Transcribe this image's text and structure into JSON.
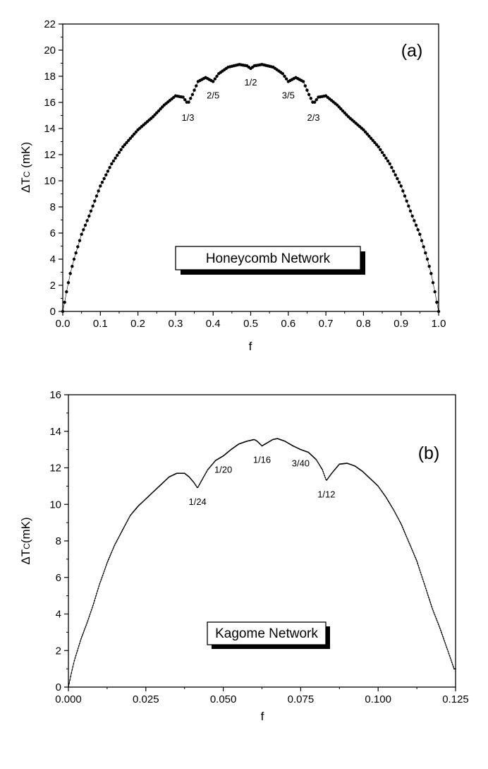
{
  "chart_data": [
    {
      "type": "scatter",
      "panel_label": "(a)",
      "xlabel": "f",
      "ylabel_main": "ΔT",
      "ylabel_sub": "C",
      "ylabel_unit": " (mK)",
      "xlim": [
        0.0,
        1.0
      ],
      "ylim": [
        0,
        22
      ],
      "x_ticks": [
        0.0,
        0.1,
        0.2,
        0.3,
        0.4,
        0.5,
        0.6,
        0.7,
        0.8,
        0.9,
        1.0
      ],
      "x_tick_labels": [
        "0.0",
        "0.1",
        "0.2",
        "0.3",
        "0.4",
        "0.5",
        "0.6",
        "0.7",
        "0.8",
        "0.9",
        "1.0"
      ],
      "y_ticks": [
        0,
        2,
        4,
        6,
        8,
        10,
        12,
        14,
        16,
        18,
        20,
        22
      ],
      "y_tick_labels": [
        "0",
        "2",
        "4",
        "6",
        "8",
        "10",
        "12",
        "14",
        "16",
        "18",
        "20",
        "22"
      ],
      "legend_text": "Honeycomb Network",
      "grid": false,
      "curve": [
        [
          0.0,
          0.0
        ],
        [
          0.005,
          0.7
        ],
        [
          0.01,
          1.5
        ],
        [
          0.02,
          2.9
        ],
        [
          0.03,
          4.0
        ],
        [
          0.05,
          5.9
        ],
        [
          0.07,
          7.3
        ],
        [
          0.1,
          9.6
        ],
        [
          0.13,
          11.3
        ],
        [
          0.16,
          12.6
        ],
        [
          0.2,
          13.9
        ],
        [
          0.24,
          14.9
        ],
        [
          0.27,
          15.8
        ],
        [
          0.3,
          16.5
        ],
        [
          0.32,
          16.4
        ],
        [
          0.333,
          15.9
        ],
        [
          0.345,
          16.6
        ],
        [
          0.36,
          17.6
        ],
        [
          0.38,
          17.9
        ],
        [
          0.4,
          17.6
        ],
        [
          0.415,
          18.2
        ],
        [
          0.44,
          18.7
        ],
        [
          0.47,
          18.9
        ],
        [
          0.49,
          18.8
        ],
        [
          0.5,
          18.6
        ],
        [
          0.51,
          18.8
        ],
        [
          0.53,
          18.9
        ],
        [
          0.56,
          18.7
        ],
        [
          0.585,
          18.2
        ],
        [
          0.6,
          17.6
        ],
        [
          0.62,
          17.9
        ],
        [
          0.64,
          17.6
        ],
        [
          0.655,
          16.6
        ],
        [
          0.667,
          15.9
        ],
        [
          0.68,
          16.4
        ],
        [
          0.7,
          16.5
        ],
        [
          0.73,
          15.8
        ],
        [
          0.76,
          14.9
        ],
        [
          0.8,
          13.9
        ],
        [
          0.84,
          12.6
        ],
        [
          0.87,
          11.3
        ],
        [
          0.9,
          9.6
        ],
        [
          0.93,
          7.3
        ],
        [
          0.95,
          5.9
        ],
        [
          0.97,
          4.0
        ],
        [
          0.98,
          2.9
        ],
        [
          0.99,
          1.5
        ],
        [
          0.995,
          0.7
        ],
        [
          1.0,
          0.0
        ]
      ],
      "annotations": [
        {
          "text": "1/3",
          "x": 0.333,
          "y": 15.9
        },
        {
          "text": "2/5",
          "x": 0.4,
          "y": 17.6
        },
        {
          "text": "1/2",
          "x": 0.5,
          "y": 18.6
        },
        {
          "text": "3/5",
          "x": 0.6,
          "y": 17.6
        },
        {
          "text": "2/3",
          "x": 0.667,
          "y": 15.9
        }
      ]
    },
    {
      "type": "line",
      "panel_label": "(b)",
      "xlabel": "f",
      "ylabel_main": "ΔT",
      "ylabel_sub": "C",
      "ylabel_unit": "(mK)",
      "xlim": [
        0.0,
        0.125
      ],
      "ylim": [
        0,
        16
      ],
      "x_ticks": [
        0.0,
        0.025,
        0.05,
        0.075,
        0.1,
        0.125
      ],
      "x_tick_labels": [
        "0.000",
        "0.025",
        "0.050",
        "0.075",
        "0.100",
        "0.125"
      ],
      "y_ticks": [
        0,
        2,
        4,
        6,
        8,
        10,
        12,
        14,
        16
      ],
      "y_tick_labels": [
        "0",
        "2",
        "4",
        "6",
        "8",
        "10",
        "12",
        "14",
        "16"
      ],
      "legend_text": "Kagome Network",
      "grid": false,
      "curve": [
        [
          0.0,
          0.0
        ],
        [
          0.001,
          0.8
        ],
        [
          0.002,
          1.5
        ],
        [
          0.004,
          2.6
        ],
        [
          0.006,
          3.5
        ],
        [
          0.008,
          4.5
        ],
        [
          0.01,
          5.6
        ],
        [
          0.0125,
          6.8
        ],
        [
          0.015,
          7.8
        ],
        [
          0.0175,
          8.6
        ],
        [
          0.02,
          9.4
        ],
        [
          0.0225,
          9.9
        ],
        [
          0.025,
          10.3
        ],
        [
          0.0275,
          10.7
        ],
        [
          0.03,
          11.1
        ],
        [
          0.0325,
          11.5
        ],
        [
          0.035,
          11.7
        ],
        [
          0.0375,
          11.7
        ],
        [
          0.039,
          11.5
        ],
        [
          0.0405,
          11.2
        ],
        [
          0.0417,
          10.9
        ],
        [
          0.043,
          11.3
        ],
        [
          0.045,
          11.9
        ],
        [
          0.0475,
          12.4
        ],
        [
          0.05,
          12.65
        ],
        [
          0.0525,
          13.0
        ],
        [
          0.055,
          13.3
        ],
        [
          0.0575,
          13.45
        ],
        [
          0.06,
          13.55
        ],
        [
          0.061,
          13.45
        ],
        [
          0.0625,
          13.2
        ],
        [
          0.064,
          13.35
        ],
        [
          0.066,
          13.55
        ],
        [
          0.0675,
          13.6
        ],
        [
          0.07,
          13.45
        ],
        [
          0.0725,
          13.2
        ],
        [
          0.075,
          13.0
        ],
        [
          0.0775,
          12.85
        ],
        [
          0.08,
          12.45
        ],
        [
          0.082,
          11.9
        ],
        [
          0.0833,
          11.3
        ],
        [
          0.085,
          11.7
        ],
        [
          0.0875,
          12.2
        ],
        [
          0.09,
          12.25
        ],
        [
          0.0925,
          12.1
        ],
        [
          0.095,
          11.8
        ],
        [
          0.0975,
          11.4
        ],
        [
          0.1,
          11.0
        ],
        [
          0.1025,
          10.4
        ],
        [
          0.105,
          9.7
        ],
        [
          0.1075,
          8.9
        ],
        [
          0.11,
          7.9
        ],
        [
          0.1125,
          6.9
        ],
        [
          0.115,
          5.6
        ],
        [
          0.1175,
          4.3
        ],
        [
          0.12,
          3.2
        ],
        [
          0.1225,
          2.0
        ],
        [
          0.1245,
          1.0
        ]
      ],
      "annotations": [
        {
          "text": "1/24",
          "x": 0.0417,
          "y": 10.9
        },
        {
          "text": "1/20",
          "x": 0.05,
          "y": 12.65
        },
        {
          "text": "1/16",
          "x": 0.0625,
          "y": 13.2
        },
        {
          "text": "3/40",
          "x": 0.075,
          "y": 13.0
        },
        {
          "text": "1/12",
          "x": 0.0833,
          "y": 11.3
        }
      ]
    }
  ]
}
